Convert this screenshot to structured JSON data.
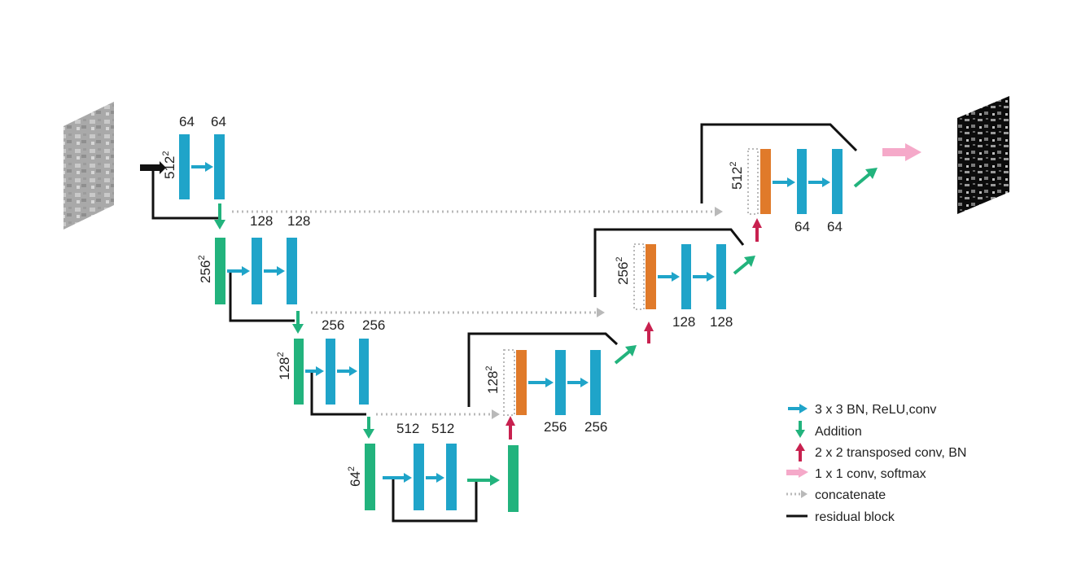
{
  "colors": {
    "conv": "#1fa4c9",
    "addition": "#22b37d",
    "upconv": "#e07a2a",
    "transposed": "#c8214f",
    "softmax": "#f5a9c9",
    "concat": "#b9b9b9",
    "residual": "#111111"
  },
  "input_image": {
    "name": "input-image",
    "tone": "gray-texture"
  },
  "output_image": {
    "name": "output-segmentation",
    "tone": "black-white-mask"
  },
  "encoder": {
    "level1": {
      "size_base": "512",
      "size_exp": "2",
      "ch1": "64",
      "ch2": "64"
    },
    "level2": {
      "size_base": "256",
      "size_exp": "2",
      "ch1": "128",
      "ch2": "128"
    },
    "level3": {
      "size_base": "128",
      "size_exp": "2",
      "ch1": "256",
      "ch2": "256"
    },
    "level4": {
      "size_base": "64",
      "size_exp": "2",
      "ch1": "512",
      "ch2": "512"
    }
  },
  "decoder": {
    "level3": {
      "size_base": "128",
      "size_exp": "2",
      "ch1": "256",
      "ch2": "256"
    },
    "level2": {
      "size_base": "256",
      "size_exp": "2",
      "ch1": "128",
      "ch2": "128"
    },
    "level1": {
      "size_base": "512",
      "size_exp": "2",
      "ch1": "64",
      "ch2": "64"
    }
  },
  "legend": [
    {
      "icon": "cyan-arrow-right",
      "label": "3 x 3 BN, ReLU,conv"
    },
    {
      "icon": "green-arrow-down",
      "label": "Addition"
    },
    {
      "icon": "red-arrow-up",
      "label": "2 x 2 transposed conv, BN"
    },
    {
      "icon": "pink-arrow-right",
      "label": "1 x 1 conv, softmax"
    },
    {
      "icon": "gray-dotted-arrow",
      "label": "concatenate"
    },
    {
      "icon": "black-line",
      "label": "residual block"
    }
  ]
}
